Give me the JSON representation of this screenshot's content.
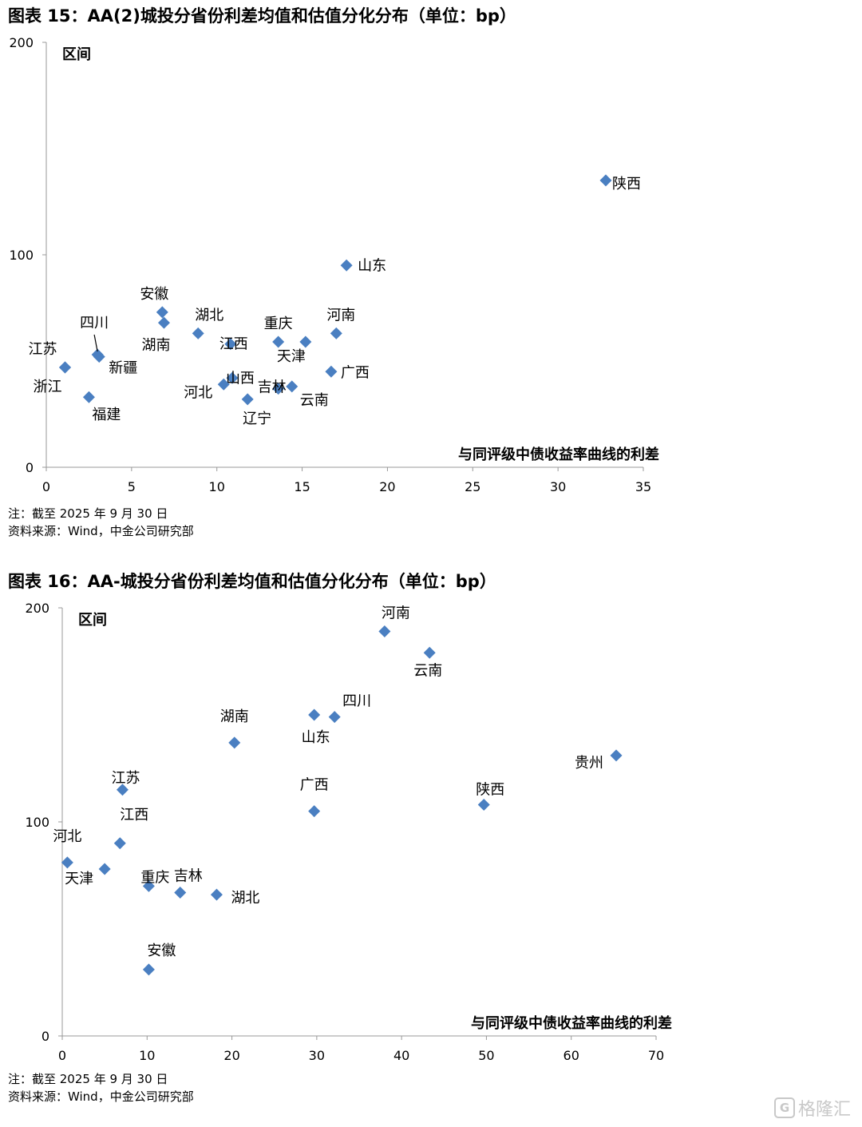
{
  "chart_data": [
    {
      "type": "scatter",
      "title": "图表 15：AA(2)城投分省份利差均值和估值分化分布（单位：bp）",
      "xlabel": "与同评级中债收益率曲线的利差",
      "ylabel": "区间",
      "xlim": [
        0,
        35
      ],
      "ylim": [
        0,
        200
      ],
      "xticks": [
        "0",
        "5",
        "10",
        "15",
        "20",
        "25",
        "30",
        "35"
      ],
      "yticks": [
        "0",
        "100",
        "200"
      ],
      "marker_color": "#4a7fc1",
      "points": [
        {
          "label": "陕西",
          "x": 32.8,
          "y": 135
        },
        {
          "label": "山东",
          "x": 17.6,
          "y": 95
        },
        {
          "label": "安徽",
          "x": 6.8,
          "y": 73
        },
        {
          "label": "湖南",
          "x": 6.9,
          "y": 68
        },
        {
          "label": "湖北",
          "x": 8.9,
          "y": 63
        },
        {
          "label": "四川",
          "x": 3.0,
          "y": 53
        },
        {
          "label": "新疆",
          "x": 3.1,
          "y": 52
        },
        {
          "label": "江苏",
          "x": 1.1,
          "y": 47
        },
        {
          "label": "浙江",
          "x": 1.1,
          "y": 47
        },
        {
          "label": "福建",
          "x": 2.5,
          "y": 33
        },
        {
          "label": "江西",
          "x": 10.8,
          "y": 58
        },
        {
          "label": "重庆",
          "x": 13.6,
          "y": 59
        },
        {
          "label": "天津",
          "x": 15.2,
          "y": 59
        },
        {
          "label": "河南",
          "x": 17.0,
          "y": 63
        },
        {
          "label": "广西",
          "x": 16.7,
          "y": 45
        },
        {
          "label": "山西",
          "x": 10.9,
          "y": 42
        },
        {
          "label": "河北",
          "x": 10.4,
          "y": 39
        },
        {
          "label": "吉林",
          "x": 13.6,
          "y": 37
        },
        {
          "label": "云南",
          "x": 14.4,
          "y": 38
        },
        {
          "label": "辽宁",
          "x": 11.8,
          "y": 32
        }
      ]
    },
    {
      "type": "scatter",
      "title": "图表 16：AA-城投分省份利差均值和估值分化分布（单位：bp）",
      "xlabel": "与同评级中债收益率曲线的利差",
      "ylabel": "区间",
      "xlim": [
        0,
        70
      ],
      "ylim": [
        0,
        200
      ],
      "xticks": [
        "0",
        "10",
        "20",
        "30",
        "40",
        "50",
        "60",
        "70"
      ],
      "yticks": [
        "0",
        "100",
        "200"
      ],
      "marker_color": "#4a7fc1",
      "points": [
        {
          "label": "河南",
          "x": 38.0,
          "y": 189
        },
        {
          "label": "云南",
          "x": 43.3,
          "y": 179
        },
        {
          "label": "四川",
          "x": 32.1,
          "y": 149
        },
        {
          "label": "山东",
          "x": 29.7,
          "y": 150
        },
        {
          "label": "湖南",
          "x": 20.3,
          "y": 137
        },
        {
          "label": "贵州",
          "x": 65.3,
          "y": 131
        },
        {
          "label": "江苏",
          "x": 7.1,
          "y": 115
        },
        {
          "label": "广西",
          "x": 29.7,
          "y": 105
        },
        {
          "label": "陕西",
          "x": 49.7,
          "y": 108
        },
        {
          "label": "河北",
          "x": 0.6,
          "y": 81
        },
        {
          "label": "江西",
          "x": 6.8,
          "y": 90
        },
        {
          "label": "天津",
          "x": 5.0,
          "y": 78
        },
        {
          "label": "重庆",
          "x": 10.2,
          "y": 70
        },
        {
          "label": "吉林",
          "x": 13.9,
          "y": 67
        },
        {
          "label": "湖北",
          "x": 18.2,
          "y": 66
        },
        {
          "label": "安徽",
          "x": 10.2,
          "y": 31
        }
      ]
    }
  ],
  "notes": [
    {
      "line1": "注：截至 2025 年 9 月 30 日",
      "line2": "资料来源：Wind，中金公司研究部"
    },
    {
      "line1": "注：截至 2025 年 9 月 30 日",
      "line2": "资料来源：Wind，中金公司研究部"
    }
  ],
  "watermark": {
    "icon": "G",
    "text": "格隆汇"
  }
}
